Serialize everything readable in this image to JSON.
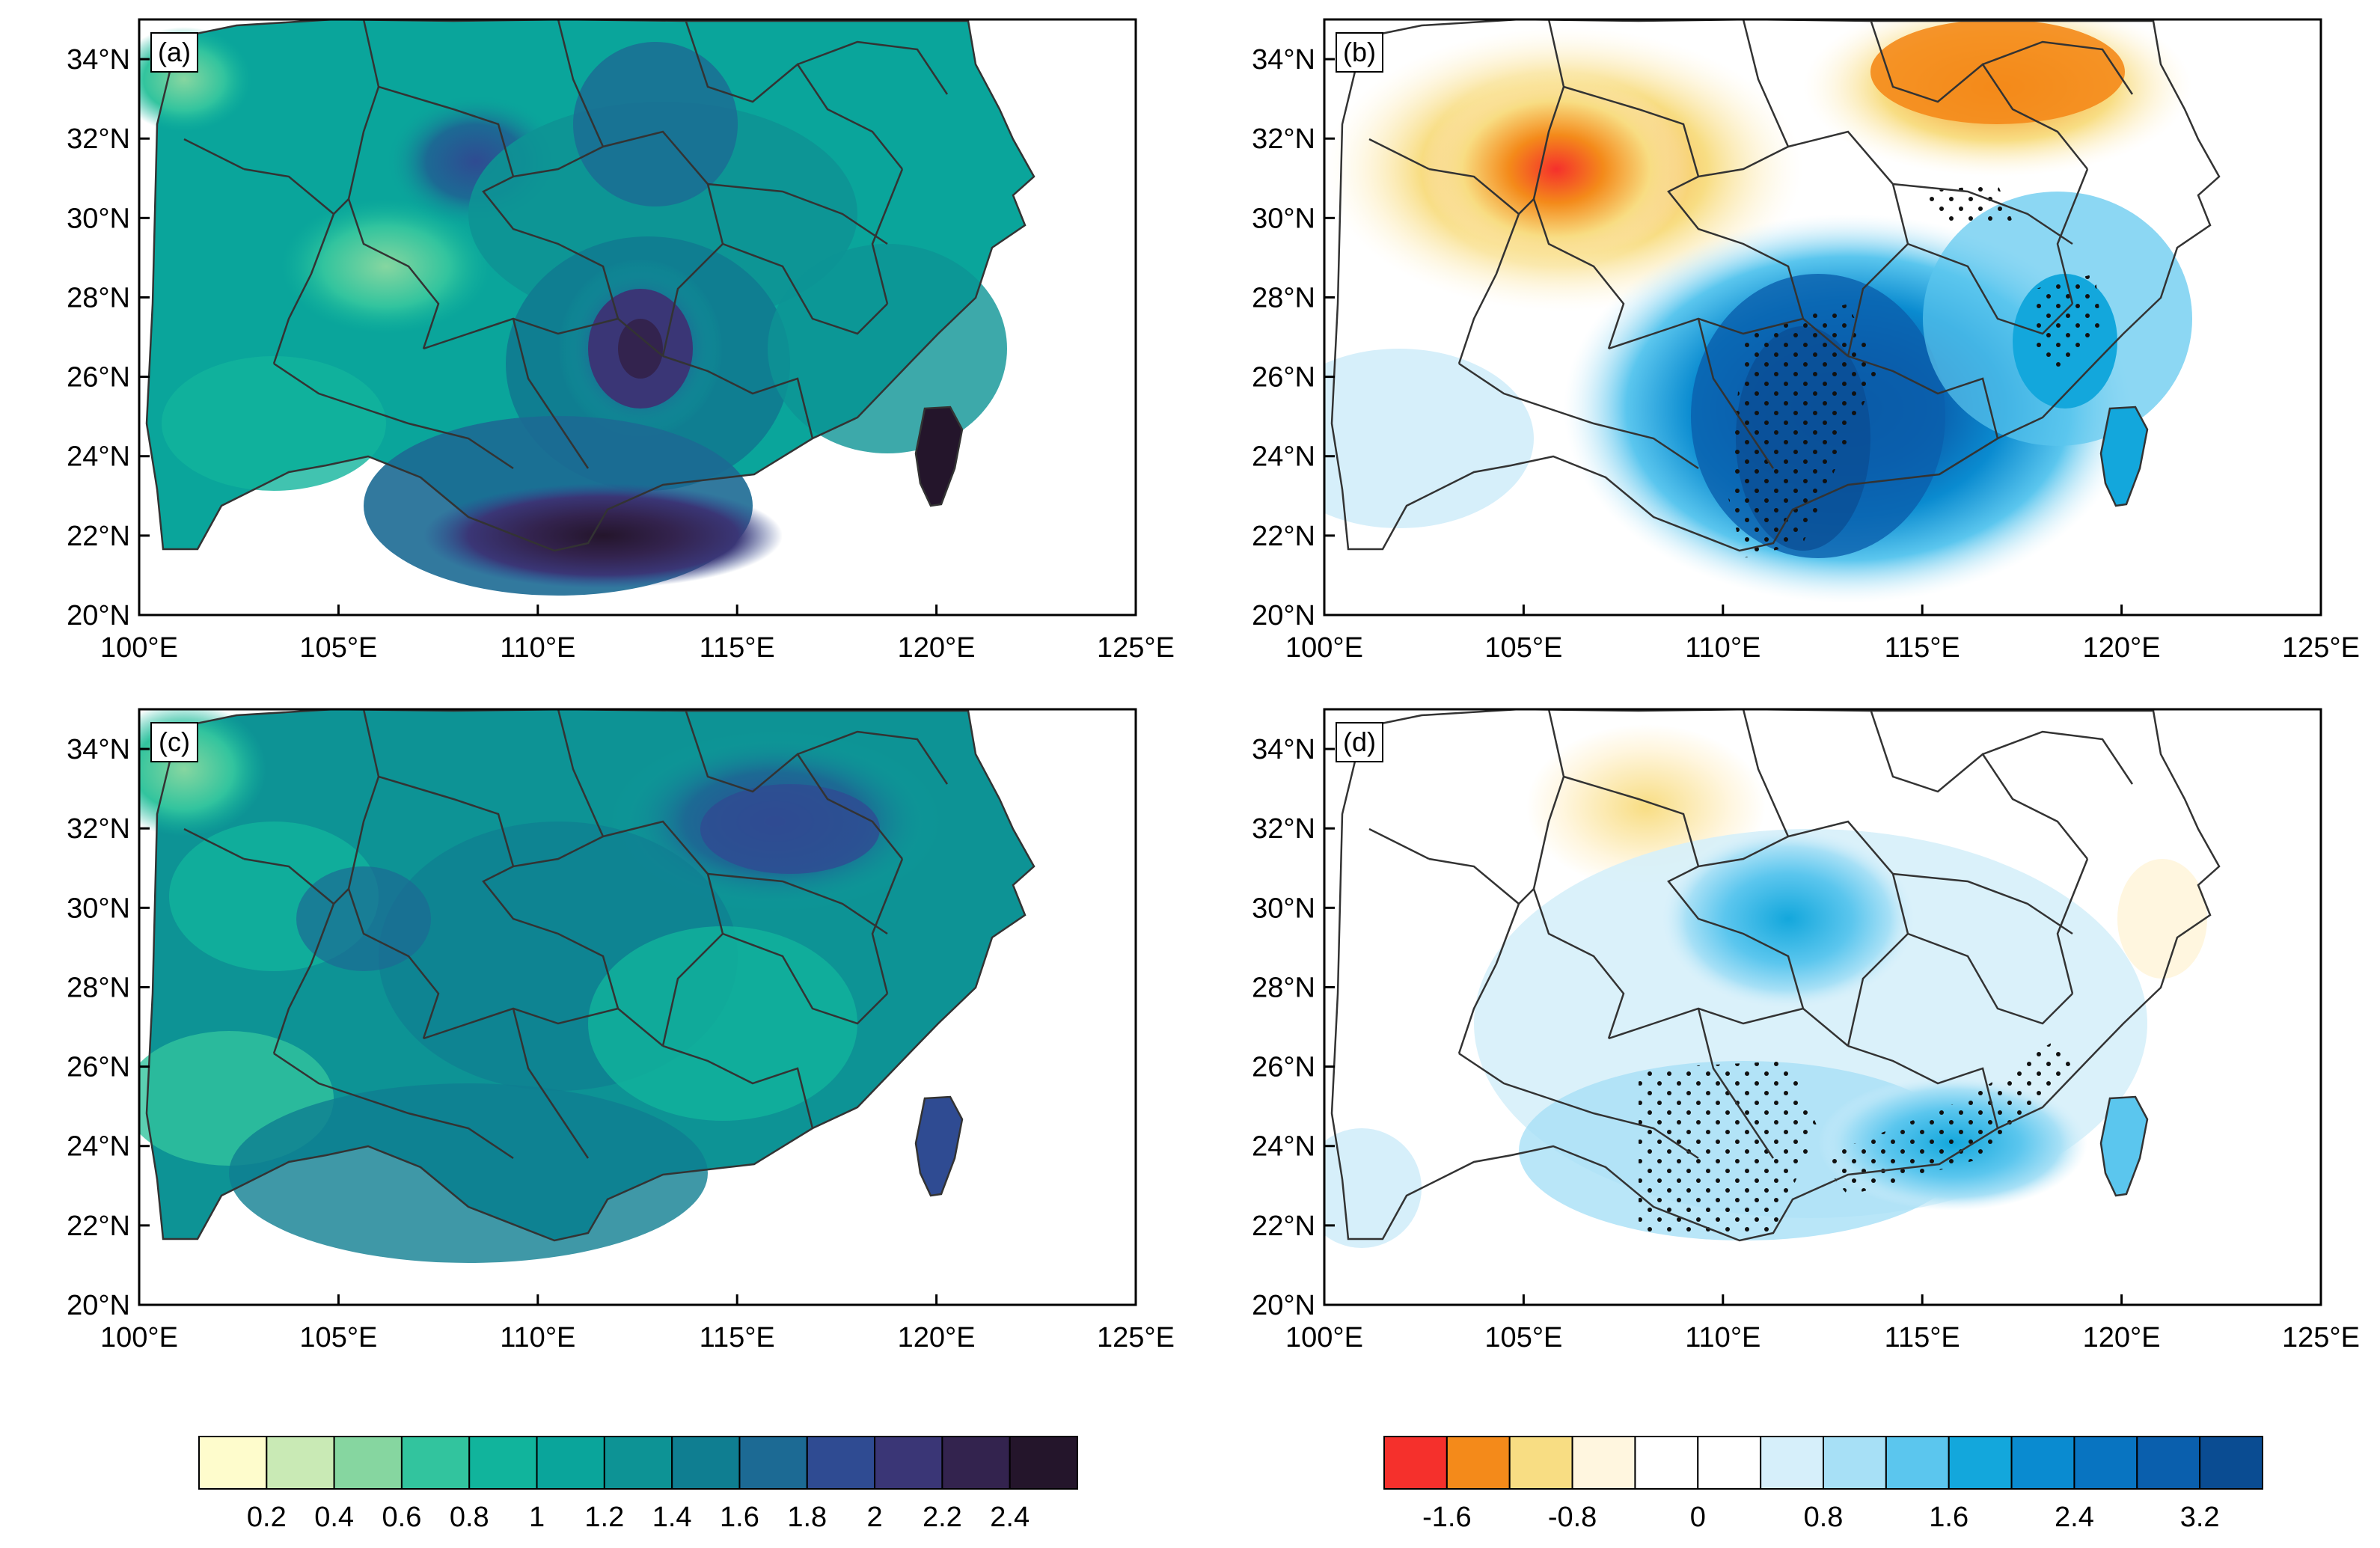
{
  "chart_data": {
    "type": "heatmap",
    "description_axes": {
      "x_ticks": [
        "100°E",
        "105°E",
        "110°E",
        "115°E",
        "120°E",
        "125°E"
      ],
      "y_ticks": [
        "20°N",
        "22°N",
        "24°N",
        "26°N",
        "28°N",
        "30°N",
        "32°N",
        "34°N"
      ],
      "xlim": [
        100,
        125
      ],
      "ylim": [
        20,
        35
      ]
    },
    "panels": [
      {
        "label": "(a)",
        "colormap": "sequential",
        "range": [
          0,
          2.6
        ]
      },
      {
        "label": "(b)",
        "colormap": "diverging",
        "range": [
          -2.0,
          3.6
        ]
      },
      {
        "label": "(c)",
        "colormap": "sequential",
        "range": [
          0,
          2.6
        ]
      },
      {
        "label": "(d)",
        "colormap": "diverging",
        "range": [
          -2.0,
          3.6
        ]
      }
    ],
    "colorbars": [
      {
        "name": "sequential",
        "colors": [
          "#fefccc",
          "#c9eab5",
          "#86d6a0",
          "#32c49e",
          "#11b49c",
          "#0aa59b",
          "#0d9395",
          "#0f7e91",
          "#1c6a94",
          "#2f4b92",
          "#3a3676",
          "#33234e",
          "#24152b"
        ],
        "tick_labels": [
          "0.2",
          "0.4",
          "0.6",
          "0.8",
          "1",
          "1.2",
          "1.4",
          "1.6",
          "1.8",
          "2",
          "2.2",
          "2.4"
        ]
      },
      {
        "name": "diverging",
        "colors": [
          "#f5302c",
          "#f48a1a",
          "#f8dd83",
          "#fff6df",
          "#ffffff",
          "#ffffff",
          "#d6effa",
          "#a7e0f6",
          "#5bc6ee",
          "#13a7dc",
          "#0a8bd0",
          "#0874c1",
          "#0a5fad",
          "#0a4c92"
        ],
        "tick_labels": [
          "-1.6",
          "-0.8",
          "0",
          "0.8",
          "1.6",
          "2.4",
          "3.2"
        ]
      }
    ]
  }
}
